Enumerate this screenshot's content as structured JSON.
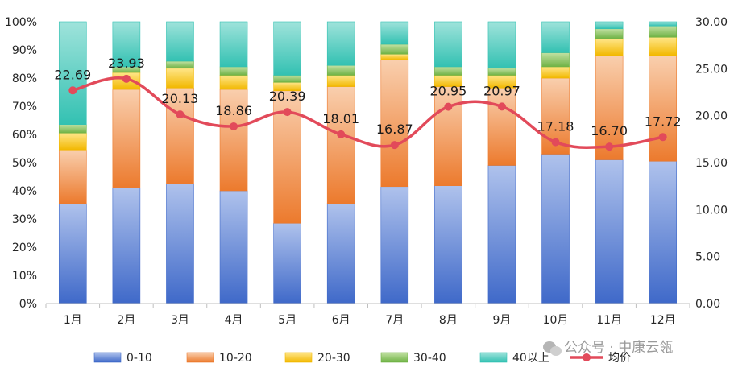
{
  "colors": {
    "s0_top": "#AFC2EC",
    "s0_bottom": "#3F69C9",
    "s1_top": "#F9CFAE",
    "s1_bottom": "#EC7A2D",
    "s2_top": "#FFE68A",
    "s2_bottom": "#F2B800",
    "s3_top": "#C2E1A3",
    "s3_bottom": "#6FB245",
    "s4_top": "#9FE3DB",
    "s4_bottom": "#33C1B2",
    "line": "#E24A5A",
    "grid": "#D9D9D9",
    "axis": "#BFBFBF"
  },
  "chart_data": {
    "type": "bar",
    "stacked": true,
    "percent_stacked": true,
    "categories": [
      "1月",
      "2月",
      "3月",
      "4月",
      "5月",
      "6月",
      "7月",
      "8月",
      "9月",
      "10月",
      "11月",
      "12月"
    ],
    "series": [
      {
        "name": "0-10",
        "values": [
          35.5,
          41.0,
          42.5,
          40.0,
          28.5,
          35.5,
          41.5,
          41.8,
          49.0,
          53.0,
          51.0,
          50.5
        ]
      },
      {
        "name": "10-20",
        "values": [
          19.0,
          35.0,
          34.0,
          36.0,
          47.0,
          41.5,
          45.0,
          35.2,
          27.5,
          27.0,
          37.0,
          37.5
        ]
      },
      {
        "name": "20-30",
        "values": [
          6.0,
          6.0,
          7.0,
          5.0,
          3.0,
          4.0,
          2.0,
          4.0,
          4.5,
          4.0,
          6.0,
          6.5
        ]
      },
      {
        "name": "30-40",
        "values": [
          3.0,
          2.0,
          2.5,
          3.0,
          2.5,
          3.5,
          3.5,
          3.0,
          2.5,
          5.0,
          3.5,
          4.0
        ]
      },
      {
        "name": "40以上",
        "values": [
          36.5,
          16.0,
          14.0,
          16.0,
          19.0,
          15.5,
          8.0,
          16.0,
          16.5,
          11.0,
          2.5,
          1.5
        ]
      }
    ],
    "line": {
      "name": "均价",
      "axis": "right",
      "values": [
        22.69,
        23.93,
        20.13,
        18.86,
        20.39,
        18.01,
        16.87,
        20.95,
        20.97,
        17.18,
        16.7,
        17.72
      ],
      "labels": [
        "22.69",
        "23.93",
        "20.13",
        "18.86",
        "20.39",
        "18.01",
        "16.87",
        "20.95",
        "20.97",
        "17.18",
        "16.70",
        "17.72"
      ]
    },
    "ylim": [
      0,
      100
    ],
    "y_ticks": [
      "0%",
      "10%",
      "20%",
      "30%",
      "40%",
      "50%",
      "60%",
      "70%",
      "80%",
      "90%",
      "100%"
    ],
    "y2lim": [
      0,
      30
    ],
    "y2_ticks": [
      "0.00",
      "5.00",
      "10.00",
      "15.00",
      "20.00",
      "25.00",
      "30.00"
    ],
    "grid": false,
    "legend_position": "bottom"
  },
  "watermark": {
    "text": "公众号 · 中康云瓴"
  }
}
